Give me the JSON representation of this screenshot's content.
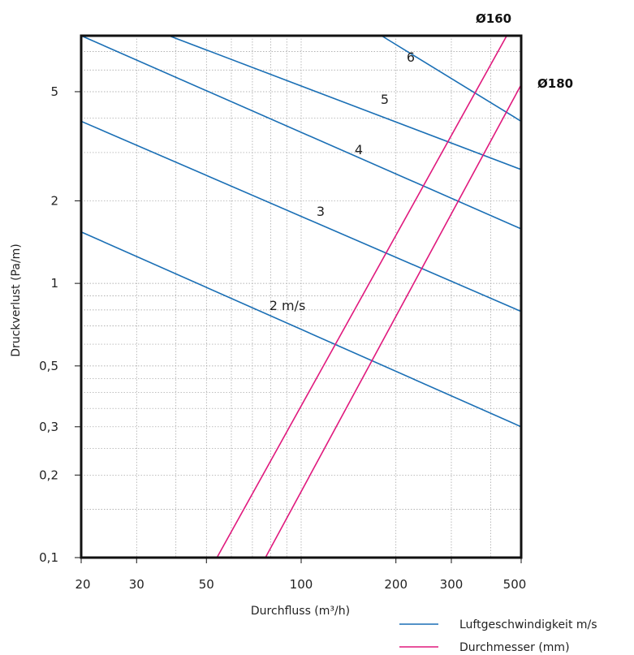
{
  "chart_data": {
    "type": "line",
    "xlabel": "Durchfluss (m³/h)",
    "ylabel": "Druckverlust (Pa/m)",
    "x_scale": "log",
    "y_scale": "log",
    "xlim": [
      20,
      500
    ],
    "ylim": [
      0.1,
      8
    ],
    "x_ticks": [
      {
        "value": 20,
        "label": "20"
      },
      {
        "value": 30,
        "label": "30"
      },
      {
        "value": 50,
        "label": "50"
      },
      {
        "value": 100,
        "label": "100"
      },
      {
        "value": 200,
        "label": "200"
      },
      {
        "value": 300,
        "label": "300"
      },
      {
        "value": 500,
        "label": "500"
      }
    ],
    "y_ticks": [
      {
        "value": 0.1,
        "label": "0,1"
      },
      {
        "value": 0.2,
        "label": "0,2"
      },
      {
        "value": 0.3,
        "label": "0,3"
      },
      {
        "value": 0.5,
        "label": "0,5"
      },
      {
        "value": 1,
        "label": "1"
      },
      {
        "value": 2,
        "label": "2"
      },
      {
        "value": 5,
        "label": "5"
      }
    ],
    "grid": true,
    "velocity_color": "#1a6fb5",
    "diameter_color": "#e0197d",
    "velocity_series": [
      {
        "label": "2 m/s",
        "points": [
          [
            20,
            1.54
          ],
          [
            500,
            0.3
          ]
        ]
      },
      {
        "label": "3",
        "points": [
          [
            20,
            3.9
          ],
          [
            500,
            0.79
          ]
        ]
      },
      {
        "label": "4",
        "points": [
          [
            20,
            8.0
          ],
          [
            500,
            1.58
          ]
        ]
      },
      {
        "label": "5",
        "points": [
          [
            38,
            8.0
          ],
          [
            500,
            2.6
          ]
        ]
      },
      {
        "label": "6",
        "points": [
          [
            180,
            8.0
          ],
          [
            500,
            3.9
          ]
        ]
      }
    ],
    "diameter_series": [
      {
        "label": "Ø160",
        "points": [
          [
            54,
            0.1
          ],
          [
            450,
            8.0
          ]
        ]
      },
      {
        "label": "Ø180",
        "points": [
          [
            77,
            0.1
          ],
          [
            500,
            5.3
          ]
        ]
      }
    ],
    "legend": {
      "placement": "bottom-right",
      "items": [
        {
          "label": "Luftgeschwindigkeit m/s",
          "color": "#1a6fb5"
        },
        {
          "label": "Durchmesser (mm)",
          "color": "#e0197d"
        }
      ]
    }
  }
}
